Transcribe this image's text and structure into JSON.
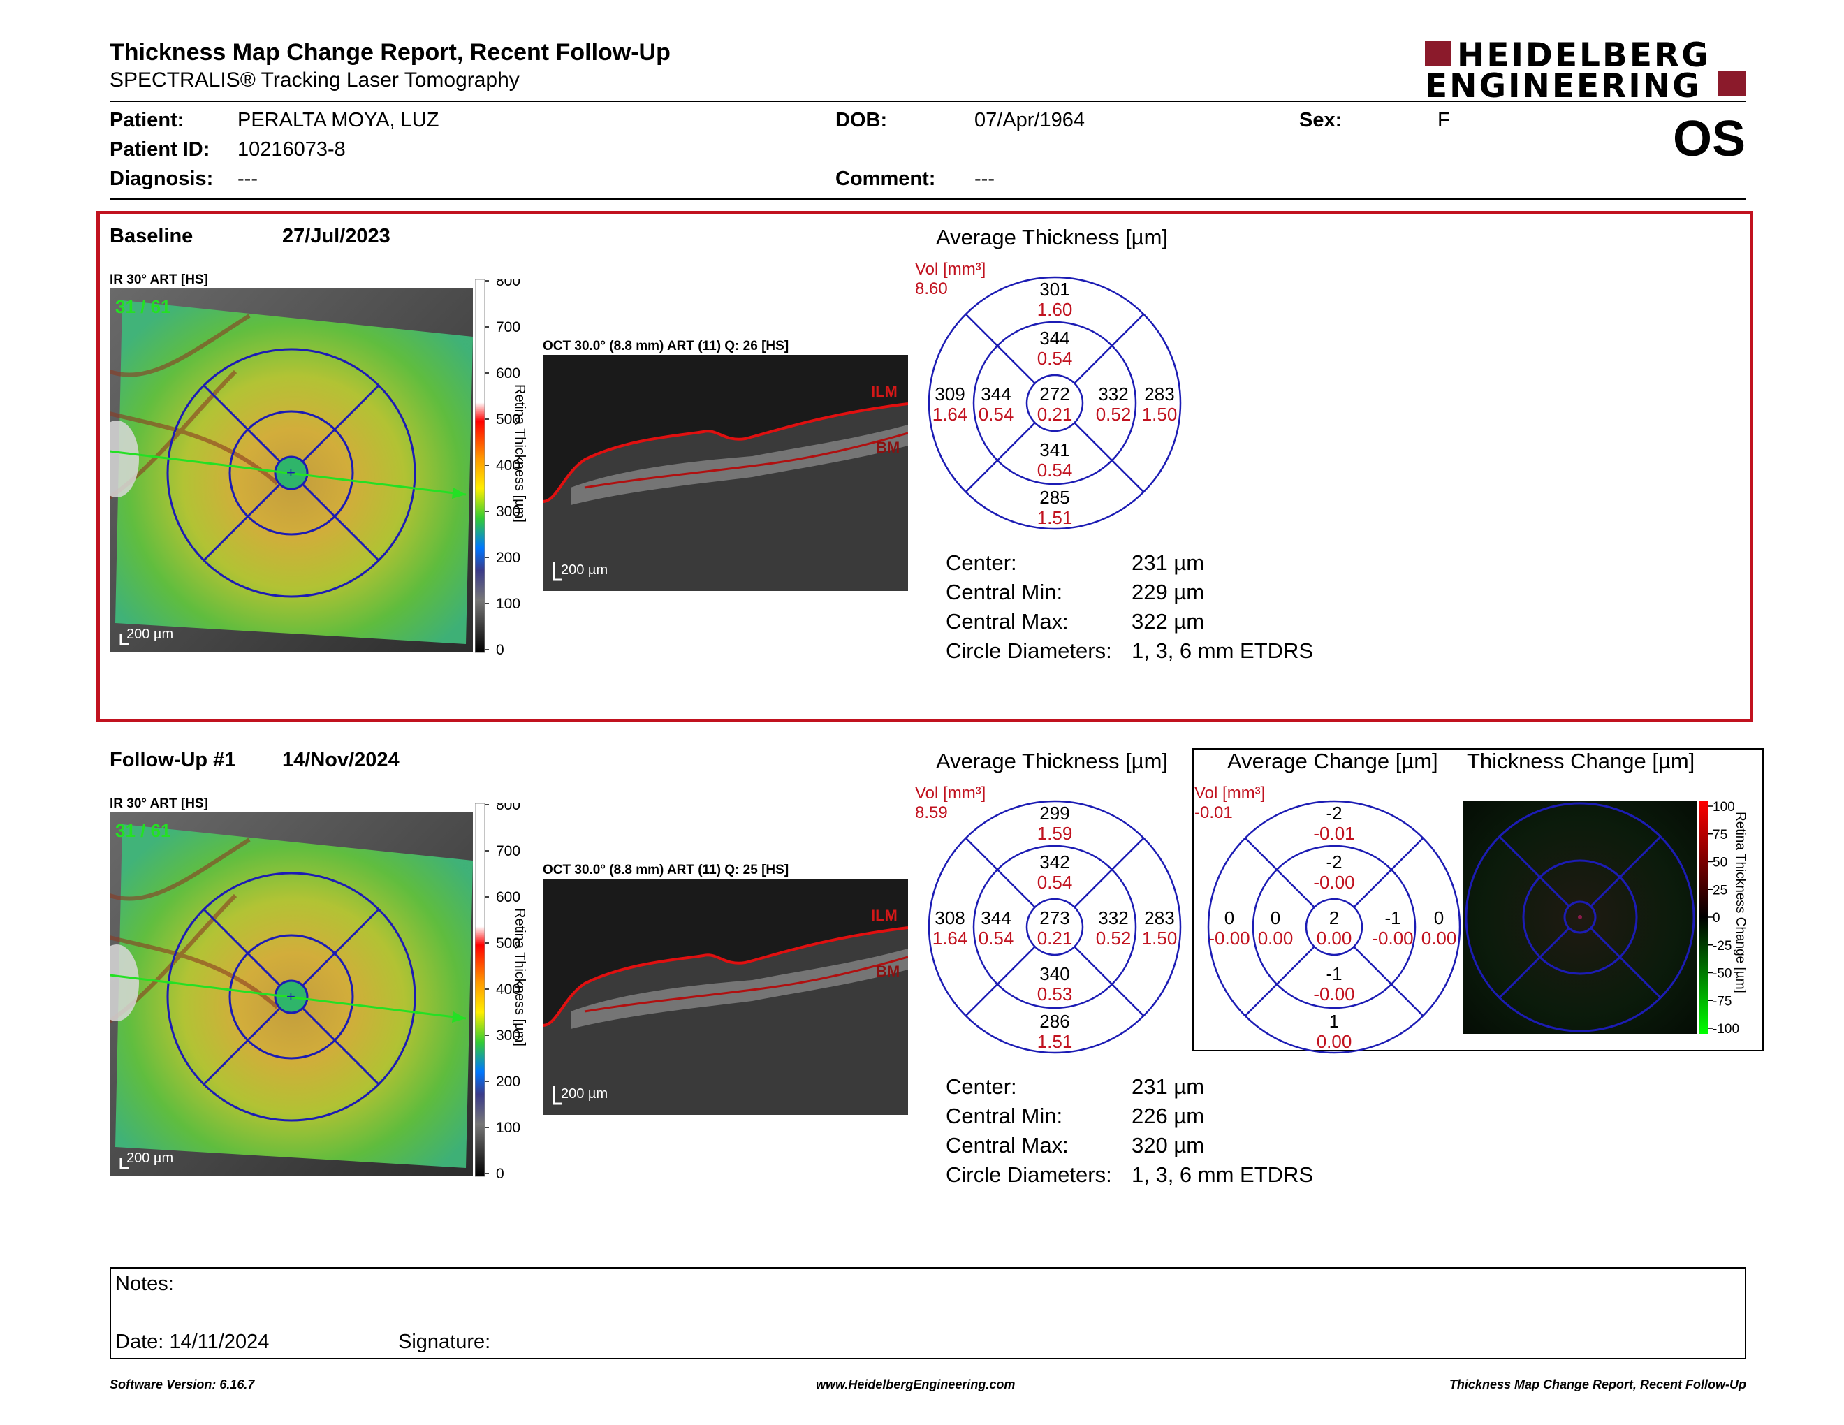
{
  "header": {
    "title": "Thickness Map Change Report, Recent Follow-Up",
    "subtitle": "SPECTRALIS® Tracking Laser Tomography",
    "logo_line1": "HEIDELBERG",
    "logo_line2": "ENGINEERING",
    "eye": "OS"
  },
  "patient": {
    "patient_label": "Patient:",
    "patient_value": "PERALTA MOYA, LUZ",
    "id_label": "Patient ID:",
    "id_value": "10216073-8",
    "diagnosis_label": "Diagnosis:",
    "diagnosis_value": "---",
    "dob_label": "DOB:",
    "dob_value": "07/Apr/1964",
    "comment_label": "Comment:",
    "comment_value": "---",
    "sex_label": "Sex:",
    "sex_value": "F"
  },
  "baseline": {
    "label": "Baseline",
    "date": "27/Jul/2023",
    "ir_label": "IR 30° ART [HS]",
    "ir_overlay": "31 / 61",
    "scale": "200 µm",
    "colorbar_ticks": [
      "800",
      "700",
      "600",
      "500",
      "400",
      "300",
      "200",
      "100",
      "0"
    ],
    "colorbar_title": "Retina Thickness [µm]",
    "oct_label": "OCT 30.0° (8.8 mm) ART (11) Q: 26 [HS]",
    "ilm": "ILM",
    "bm": "BM",
    "avg_title": "Average Thickness [µm]",
    "vol_label": "Vol [mm³]",
    "vol_value": "8.60",
    "sectors": {
      "outer_sup": [
        "301",
        "1.60"
      ],
      "inner_sup": [
        "344",
        "0.54"
      ],
      "outer_temp": [
        "309",
        "1.64"
      ],
      "inner_temp": [
        "344",
        "0.54"
      ],
      "center": [
        "272",
        "0.21"
      ],
      "inner_nasal": [
        "332",
        "0.52"
      ],
      "outer_nasal": [
        "283",
        "1.50"
      ],
      "inner_inf": [
        "341",
        "0.54"
      ],
      "outer_inf": [
        "285",
        "1.51"
      ]
    },
    "stats": [
      {
        "label": "Center:",
        "value": "231 µm"
      },
      {
        "label": "Central Min:",
        "value": "229 µm"
      },
      {
        "label": "Central Max:",
        "value": "322 µm"
      },
      {
        "label": "Circle Diameters:",
        "value": "1, 3, 6 mm ETDRS"
      }
    ]
  },
  "followup": {
    "label": "Follow-Up #1",
    "date": "14/Nov/2024",
    "ir_label": "IR 30° ART [HS]",
    "ir_overlay": "31 / 61",
    "scale": "200 µm",
    "colorbar_ticks": [
      "800",
      "700",
      "600",
      "500",
      "400",
      "300",
      "200",
      "100",
      "0"
    ],
    "colorbar_title": "Retina Thickness [µm]",
    "oct_label": "OCT 30.0° (8.8 mm) ART (11) Q: 25 [HS]",
    "ilm": "ILM",
    "bm": "BM",
    "avg_title": "Average Thickness [µm]",
    "vol_label": "Vol [mm³]",
    "vol_value": "8.59",
    "sectors": {
      "outer_sup": [
        "299",
        "1.59"
      ],
      "inner_sup": [
        "342",
        "0.54"
      ],
      "outer_temp": [
        "308",
        "1.64"
      ],
      "inner_temp": [
        "344",
        "0.54"
      ],
      "center": [
        "273",
        "0.21"
      ],
      "inner_nasal": [
        "332",
        "0.52"
      ],
      "outer_nasal": [
        "283",
        "1.50"
      ],
      "inner_inf": [
        "340",
        "0.53"
      ],
      "outer_inf": [
        "286",
        "1.51"
      ]
    },
    "stats": [
      {
        "label": "Center:",
        "value": "231 µm"
      },
      {
        "label": "Central Min:",
        "value": "226 µm"
      },
      {
        "label": "Central Max:",
        "value": "320 µm"
      },
      {
        "label": "Circle Diameters:",
        "value": "1, 3, 6 mm ETDRS"
      }
    ]
  },
  "change": {
    "avg_title": "Average Change [µm]",
    "map_title": "Thickness Change [µm]",
    "vol_label": "Vol [mm³]",
    "vol_value": "-0.01",
    "sectors": {
      "outer_sup": [
        "-2",
        "-0.01"
      ],
      "inner_sup": [
        "-2",
        "-0.00"
      ],
      "outer_temp": [
        "0",
        "-0.00"
      ],
      "inner_temp": [
        "0",
        "0.00"
      ],
      "center": [
        "2",
        "0.00"
      ],
      "inner_nasal": [
        "-1",
        "-0.00"
      ],
      "outer_nasal": [
        "0",
        "0.00"
      ],
      "inner_inf": [
        "-1",
        "-0.00"
      ],
      "outer_inf": [
        "1",
        "0.00"
      ]
    },
    "colorbar_ticks": [
      "100",
      "75",
      "50",
      "25",
      "0",
      "-25",
      "-50",
      "-75",
      "-100"
    ],
    "colorbar_title": "Retina Thickness Change [µm]"
  },
  "notes": {
    "notes_label": "Notes:",
    "date_label": "Date: 14/11/2024",
    "signature_label": "Signature:"
  },
  "footer": {
    "left": "Software Version: 6.16.7",
    "center": "www.HeidelbergEngineering.com",
    "right": "Thickness Map Change Report, Recent Follow-Up"
  },
  "colors": {
    "accent_red": "#c1121f",
    "grid_blue": "#1c1cb4",
    "logo": "#8b1a2b"
  }
}
